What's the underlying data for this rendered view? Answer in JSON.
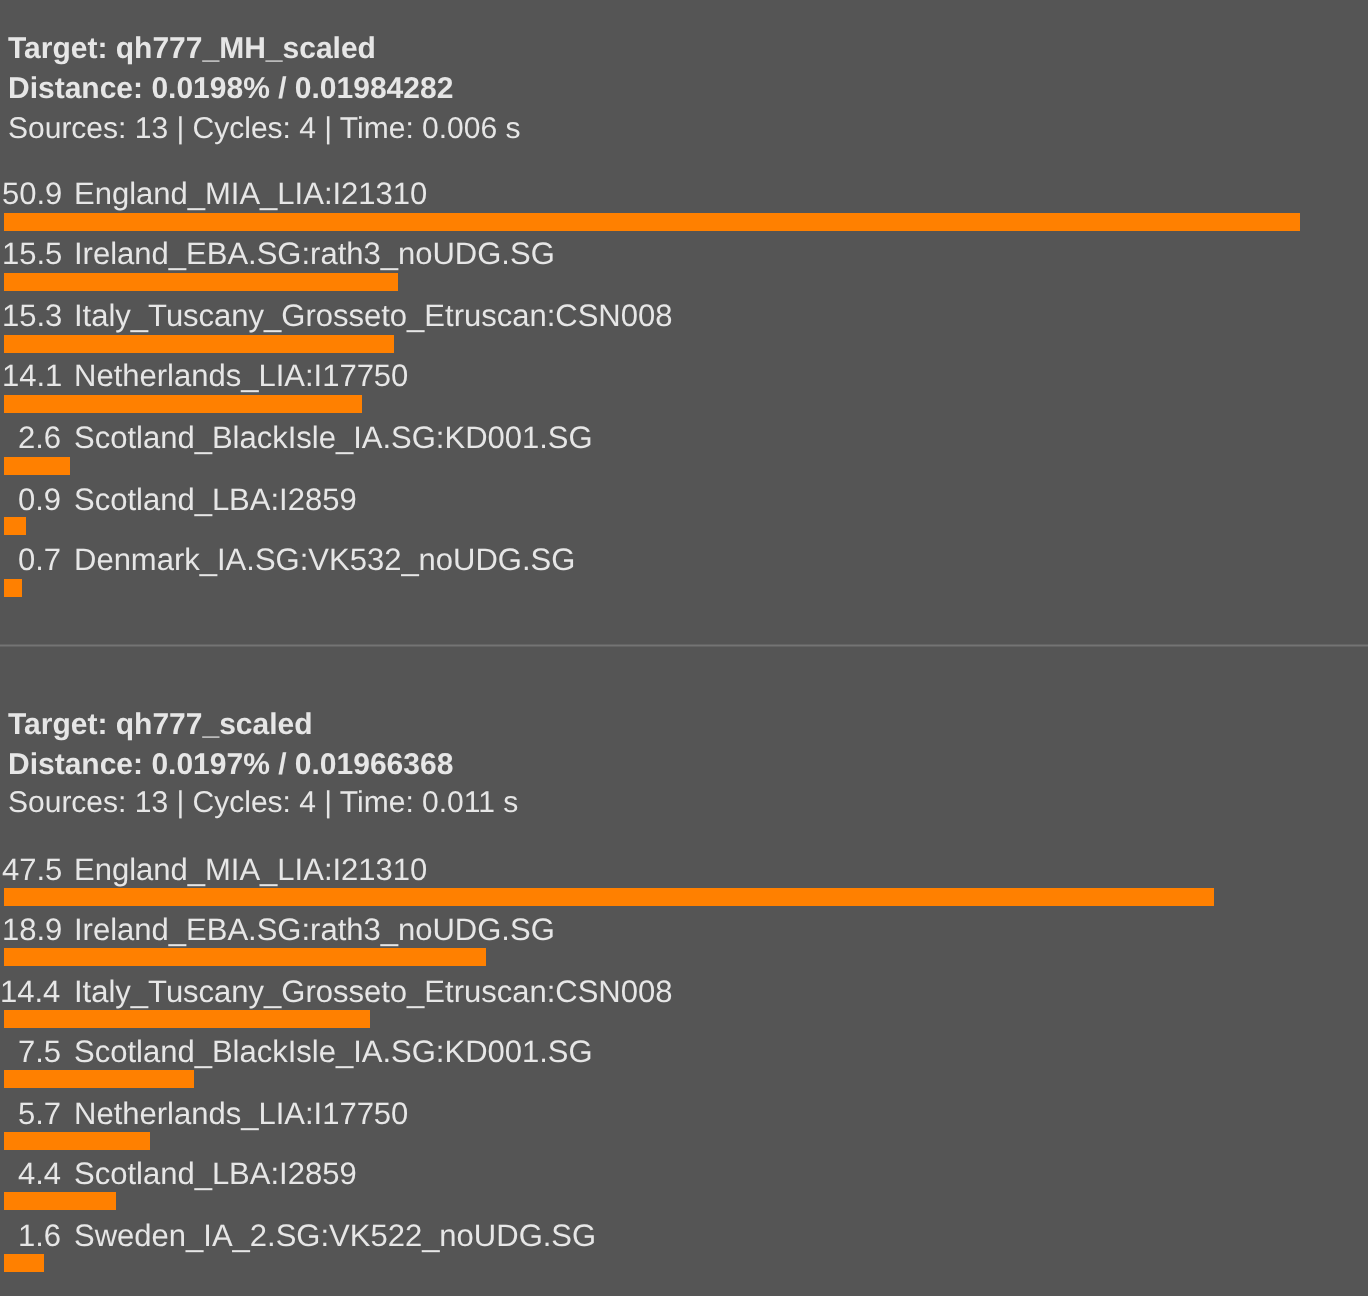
{
  "chart_data": [
    {
      "type": "bar",
      "orientation": "horizontal",
      "title": "Target: qh777_MH_scaled",
      "subtitle": "Distance: 0.0198% / 0.01984282",
      "annotations": [
        "Sources: 13 | Cycles: 4 | Time: 0.006 s"
      ],
      "categories": [
        "England_MIA_LIA:I21310",
        "Ireland_EBA.SG:rath3_noUDG.SG",
        "Italy_Tuscany_Grosseto_Etruscan:CSN008",
        "Netherlands_LIA:I17750",
        "Scotland_BlackIsle_IA.SG:KD001.SG",
        "Scotland_LBA:I2859",
        "Denmark_IA.SG:VK532_noUDG.SG"
      ],
      "values": [
        50.9,
        15.5,
        15.3,
        14.1,
        2.6,
        0.9,
        0.7
      ],
      "color": "#ff8000",
      "data_labels": true,
      "tick_labels": false
    },
    {
      "type": "bar",
      "orientation": "horizontal",
      "title": "Target: qh777_scaled",
      "subtitle": "Distance: 0.0197% / 0.01966368",
      "annotations": [
        "Sources: 13 | Cycles: 4 | Time: 0.011 s"
      ],
      "categories": [
        "England_MIA_LIA:I21310",
        "Ireland_EBA.SG:rath3_noUDG.SG",
        "Italy_Tuscany_Grosseto_Etruscan:CSN008",
        "Scotland_BlackIsle_IA.SG:KD001.SG",
        "Netherlands_LIA:I17750",
        "Scotland_LBA:I2859",
        "Sweden_IA_2.SG:VK522_noUDG.SG"
      ],
      "values": [
        47.5,
        18.9,
        14.4,
        7.5,
        5.7,
        4.4,
        1.6
      ],
      "color": "#ff8000",
      "data_labels": true,
      "tick_labels": false
    }
  ]
}
